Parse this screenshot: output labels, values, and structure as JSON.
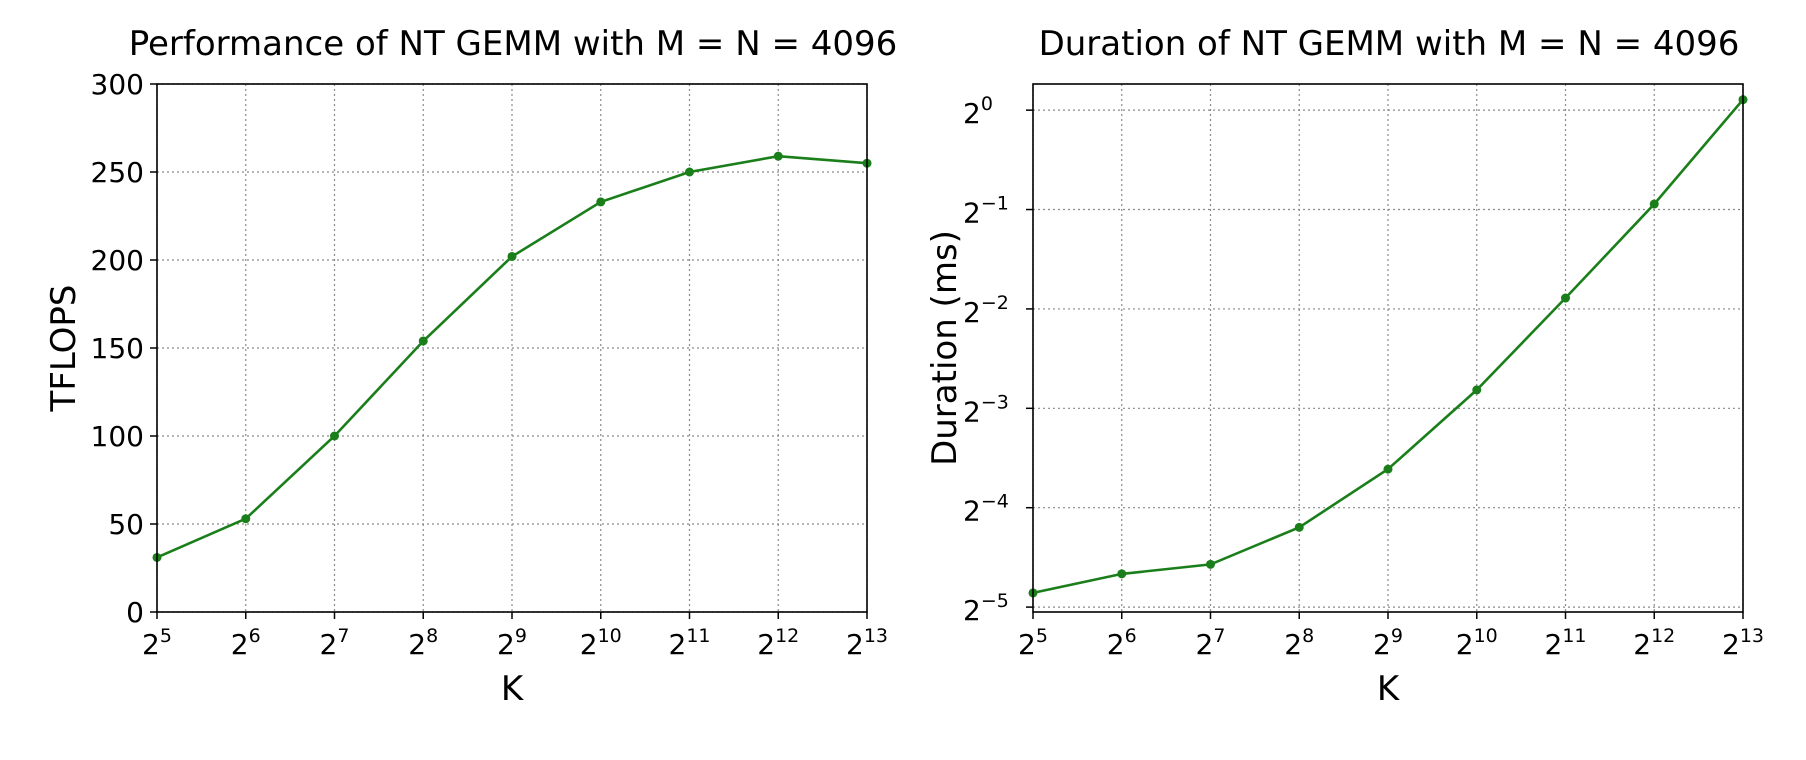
{
  "chart_data": [
    {
      "type": "line",
      "title": "Performance of NT GEMM with M = N = 4096",
      "xlabel": "K",
      "ylabel": "TFLOPS",
      "x_scale": "log2",
      "x": [
        32,
        64,
        128,
        256,
        512,
        1024,
        2048,
        4096,
        8192
      ],
      "x_tick_base": "2",
      "x_tick_exponents": [
        "5",
        "6",
        "7",
        "8",
        "9",
        "10",
        "11",
        "12",
        "13"
      ],
      "ylim": [
        0,
        300
      ],
      "y_ticks": [
        "0",
        "50",
        "100",
        "150",
        "200",
        "250",
        "300"
      ],
      "y_tick_values": [
        0,
        50,
        100,
        150,
        200,
        250,
        300
      ],
      "grid": true,
      "series": [
        {
          "color": "#1a7f1a",
          "values": [
            31,
            53,
            100,
            154,
            202,
            233,
            250,
            259,
            255
          ]
        }
      ]
    },
    {
      "type": "line",
      "title": "Duration of NT GEMM with M = N = 4096",
      "xlabel": "K",
      "ylabel": "Duration (ms)",
      "x_scale": "log2",
      "y_scale": "log2",
      "x": [
        32,
        64,
        128,
        256,
        512,
        1024,
        2048,
        4096,
        8192
      ],
      "x_tick_base": "2",
      "x_tick_exponents": [
        "5",
        "6",
        "7",
        "8",
        "9",
        "10",
        "11",
        "12",
        "13"
      ],
      "y_tick_base": "2",
      "y_tick_exponents": [
        "0",
        "−1",
        "−2",
        "−3",
        "−4",
        "−5"
      ],
      "y_tick_values": [
        1,
        0.5,
        0.25,
        0.125,
        0.0625,
        0.03125
      ],
      "ylim": [
        0.0302,
        1.2
      ],
      "grid": true,
      "series": [
        {
          "color": "#1a7f1a",
          "values": [
            0.0345,
            0.0394,
            0.0421,
            0.0545,
            0.0818,
            0.1421,
            0.2697,
            0.5196,
            1.076
          ]
        }
      ]
    }
  ]
}
